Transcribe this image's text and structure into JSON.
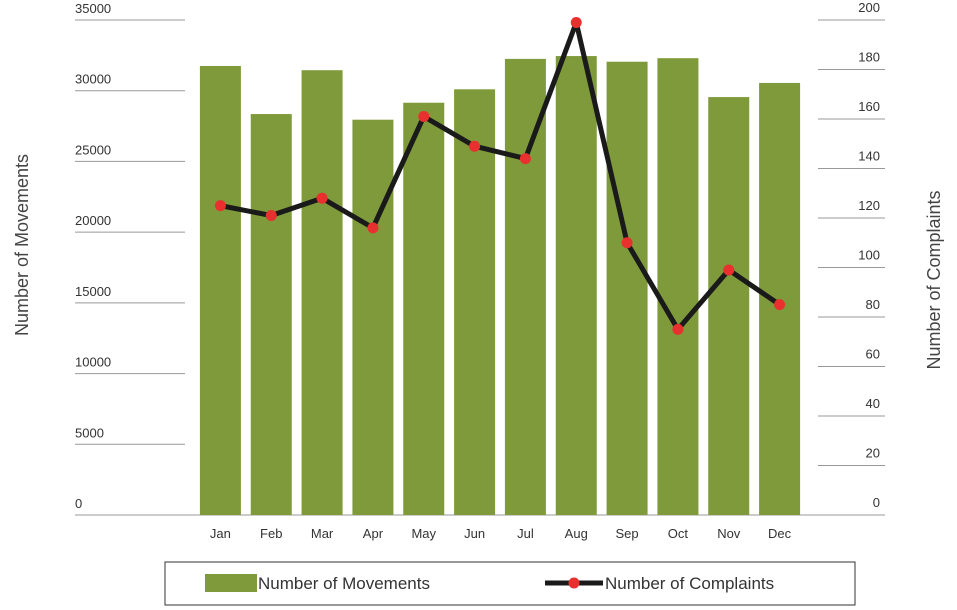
{
  "chart_data": {
    "type": "bar-line",
    "categories": [
      "Jan",
      "Feb",
      "Mar",
      "Apr",
      "May",
      "Jun",
      "Jul",
      "Aug",
      "Sep",
      "Oct",
      "Nov",
      "Dec"
    ],
    "series": [
      {
        "name": "Number of Movements",
        "type": "bar",
        "color": "#7f9a3a",
        "values": [
          31750,
          28350,
          31450,
          27950,
          29150,
          30100,
          32250,
          32450,
          32050,
          32300,
          29550,
          30550
        ]
      },
      {
        "name": "Number of Complaints",
        "type": "line",
        "axis": "y2",
        "color": "#1a1a1a",
        "marker_color": "#e8312f",
        "values": [
          125,
          121,
          128,
          116,
          161,
          149,
          144,
          199,
          110,
          75,
          99,
          85
        ]
      }
    ],
    "ylabel": "Number of Movements",
    "y2label": "Number of Complaints",
    "ylim": [
      0,
      35000
    ],
    "yticks": [
      0,
      5000,
      10000,
      15000,
      20000,
      25000,
      30000,
      35000
    ],
    "y2lim": [
      0,
      200
    ],
    "y2ticks": [
      0,
      20,
      40,
      60,
      80,
      100,
      120,
      140,
      160,
      180,
      200
    ],
    "grid": false,
    "legend": "bottom"
  }
}
